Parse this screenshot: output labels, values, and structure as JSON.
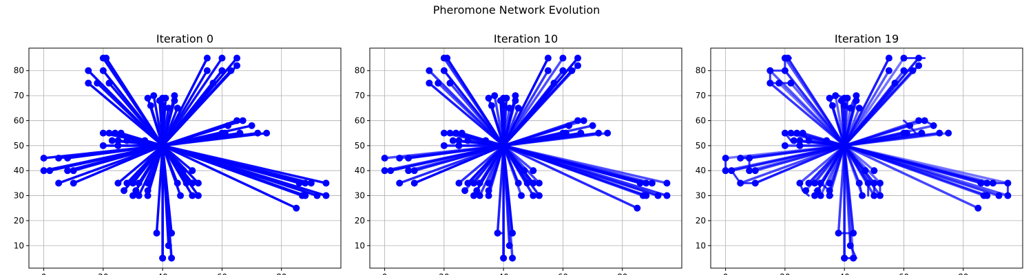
{
  "figure": {
    "title": "Pheromone Network Evolution"
  },
  "chart_data": {
    "type": "scatter",
    "subtitle_note": "",
    "nodes": {
      "x": [
        0,
        0,
        2,
        5,
        5,
        8,
        8,
        10,
        10,
        15,
        15,
        18,
        20,
        20,
        20,
        20,
        21,
        22,
        22,
        23,
        24,
        25,
        25,
        25,
        26,
        27,
        28,
        28,
        30,
        30,
        31,
        32,
        32,
        34,
        35,
        35,
        35,
        35,
        36,
        37,
        38,
        39,
        40,
        40,
        40,
        40,
        41,
        42,
        42,
        43,
        43,
        44,
        44,
        45,
        45,
        46,
        47,
        48,
        50,
        50,
        50,
        52,
        52,
        55,
        55,
        57,
        60,
        60,
        60,
        61,
        62,
        63,
        65,
        65,
        65,
        66,
        66,
        67,
        70,
        72,
        75,
        85,
        86,
        87,
        88,
        88,
        90,
        92,
        95,
        95
      ],
      "y": [
        45,
        40,
        40,
        45,
        35,
        45,
        40,
        40,
        35,
        80,
        75,
        75,
        85,
        80,
        55,
        50,
        85,
        75,
        55,
        52,
        55,
        52,
        50,
        35,
        55,
        32,
        52,
        35,
        30,
        35,
        32,
        30,
        35,
        52,
        30,
        32,
        35,
        69,
        66,
        70,
        15,
        68,
        5,
        69,
        66,
        5,
        69,
        65,
        10,
        15,
        5,
        68,
        70,
        65,
        35,
        30,
        40,
        35,
        40,
        30,
        35,
        35,
        30,
        85,
        80,
        75,
        85,
        80,
        55,
        55,
        58,
        80,
        82,
        60,
        85,
        55,
        55,
        60,
        58,
        55,
        55,
        25,
        35,
        30,
        30,
        35,
        35,
        30,
        35,
        30
      ]
    },
    "hub": [
      40,
      50
    ],
    "panels": [
      {
        "title": "Iteration 0",
        "edge_alpha_min": 0.95,
        "edge_alpha_max": 1.0,
        "extra_edges": []
      },
      {
        "title": "Iteration 10",
        "edge_alpha_min": 0.7,
        "edge_alpha_max": 1.0,
        "extra_edges": [
          [
            40,
            5,
            40,
            15
          ],
          [
            38,
            15,
            40,
            15
          ],
          [
            40,
            15,
            40,
            5
          ]
        ]
      },
      {
        "title": "Iteration 19",
        "edge_alpha_min": 0.55,
        "edge_alpha_max": 0.9,
        "extra_edges": [
          [
            0,
            45,
            0,
            40
          ],
          [
            0,
            40,
            2,
            40
          ],
          [
            2,
            40,
            5,
            35
          ],
          [
            5,
            35,
            10,
            35
          ],
          [
            5,
            45,
            8,
            45
          ],
          [
            8,
            45,
            8,
            40
          ],
          [
            8,
            40,
            10,
            40
          ],
          [
            15,
            80,
            15,
            75
          ],
          [
            15,
            80,
            20,
            80
          ],
          [
            20,
            80,
            20,
            85
          ],
          [
            20,
            85,
            22,
            85
          ],
          [
            15,
            75,
            18,
            75
          ],
          [
            18,
            75,
            22,
            75
          ],
          [
            20,
            55,
            22,
            52
          ],
          [
            22,
            52,
            24,
            52
          ],
          [
            24,
            52,
            25,
            50
          ],
          [
            26,
            55,
            28,
            52
          ],
          [
            28,
            52,
            31,
            51
          ],
          [
            25,
            35,
            26,
            32
          ],
          [
            26,
            32,
            28,
            30
          ],
          [
            30,
            32,
            32,
            30
          ],
          [
            32,
            35,
            35,
            32
          ],
          [
            35,
            32,
            36,
            30
          ],
          [
            45,
            35,
            46,
            30
          ],
          [
            48,
            35,
            48,
            30
          ],
          [
            50,
            30,
            50,
            35
          ],
          [
            52,
            35,
            52,
            30
          ],
          [
            36,
            69,
            38,
            70
          ],
          [
            38,
            70,
            40,
            69
          ],
          [
            40,
            66,
            41,
            65
          ],
          [
            42,
            65,
            43,
            68
          ],
          [
            38,
            15,
            40,
            15
          ],
          [
            40,
            15,
            42,
            15
          ],
          [
            42,
            15,
            42,
            10
          ],
          [
            42,
            10,
            44,
            5
          ],
          [
            40,
            5,
            42,
            5
          ],
          [
            60,
            85,
            65,
            85
          ],
          [
            65,
            85,
            67,
            85
          ],
          [
            60,
            80,
            63,
            80
          ],
          [
            63,
            80,
            65,
            82
          ],
          [
            60,
            60,
            62,
            58
          ],
          [
            62,
            58,
            64,
            55
          ],
          [
            65,
            60,
            67,
            60
          ],
          [
            67,
            60,
            70,
            58
          ],
          [
            85,
            35,
            88,
            35
          ],
          [
            88,
            35,
            90,
            35
          ],
          [
            90,
            35,
            95,
            35
          ],
          [
            95,
            35,
            95,
            30
          ],
          [
            88,
            30,
            86,
            30
          ]
        ]
      }
    ],
    "xlim": [
      -5,
      100
    ],
    "ylim": [
      1,
      89
    ],
    "xticks": [
      0,
      20,
      40,
      60,
      80
    ],
    "yticks": [
      10,
      20,
      30,
      40,
      50,
      60,
      70,
      80
    ],
    "grid": true,
    "color": "#0000ff"
  }
}
